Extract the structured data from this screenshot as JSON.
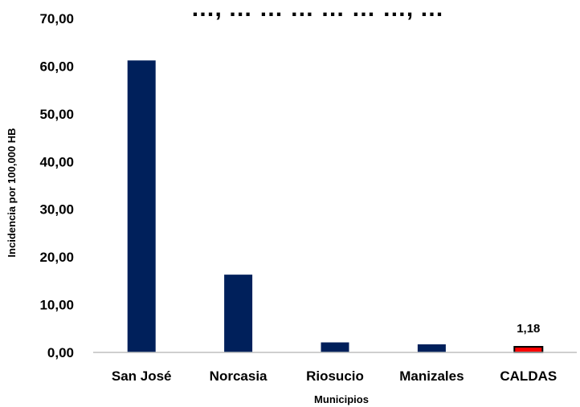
{
  "chart_data": {
    "type": "bar",
    "title": "…, … … … … … …, …",
    "xlabel": "Municipios",
    "ylabel": "Incidencia por 100,000 HB",
    "categories": [
      "San José",
      "Norcasia",
      "Riosucio",
      "Manizales",
      "CALDAS"
    ],
    "values": [
      61.2,
      16.3,
      2.1,
      1.7,
      1.18
    ],
    "bar_colors": [
      "#00205b",
      "#00205b",
      "#00205b",
      "#00205b",
      "#ff0000"
    ],
    "highlight_border_color": "#000000",
    "y_ticks": [
      "0,00",
      "10,00",
      "20,00",
      "30,00",
      "40,00",
      "50,00",
      "60,00",
      "70,00"
    ],
    "ylim": [
      0,
      70
    ],
    "data_labels": [
      {
        "category": "CALDAS",
        "text": "1,18"
      }
    ],
    "grid": false,
    "legend": "none"
  }
}
